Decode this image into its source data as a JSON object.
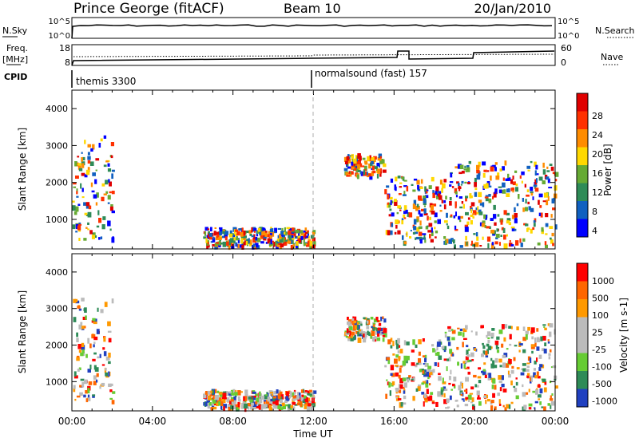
{
  "header": {
    "station": "Prince George (fitACF)",
    "beam": "Beam 10",
    "date": "20/Jan/2010"
  },
  "top_panel": {
    "nsky_label": "N.Sky",
    "nsky_ticks": [
      "10^5",
      "10^0"
    ],
    "nsearch_label": "N.Search",
    "freq_label": "Freq.",
    "freq_unit": "[MHz]",
    "freq_ticks": [
      "18",
      "8"
    ],
    "nave_label": "Nave",
    "nave_ticks": [
      "60",
      "0"
    ],
    "cpid_label": "CPID",
    "cpid_segments": [
      "themis 3300",
      "normalsound (fast) 157"
    ]
  },
  "chart_data": [
    {
      "type": "heatmap",
      "name": "power",
      "ylabel": "Slant Range [km]",
      "xlabel": "",
      "y_ticks": [
        "1000",
        "2000",
        "3000",
        "4000"
      ],
      "ylim": [
        200,
        4500
      ],
      "colorbar_label": "Power [dB]",
      "colorbar_ticks": [
        "28",
        "24",
        "20",
        "16",
        "12",
        "8",
        "4"
      ],
      "colors": [
        "#0000ff",
        "#1060c0",
        "#2e8b57",
        "#66aa33",
        "#ffd800",
        "#ff8c00",
        "#ff3000",
        "#e00000"
      ],
      "echo_regions_hours_km": [
        [
          0.0,
          2.0,
          500,
          3300
        ],
        [
          6.5,
          12.0,
          300,
          800
        ],
        [
          13.5,
          15.5,
          2200,
          2800
        ],
        [
          15.5,
          18.5,
          400,
          2200
        ],
        [
          18.5,
          24.0,
          300,
          2600
        ]
      ]
    },
    {
      "type": "heatmap",
      "name": "velocity",
      "ylabel": "Slant Range [km]",
      "xlabel": "Time UT",
      "y_ticks": [
        "1000",
        "2000",
        "3000",
        "4000"
      ],
      "ylim": [
        200,
        4500
      ],
      "colorbar_label": "Velocity [m s-1]",
      "colorbar_ticks": [
        "1000",
        "500",
        "100",
        "25",
        "-25",
        "-100",
        "-500",
        "-1000"
      ],
      "colors": [
        "#2040c0",
        "#2e8b57",
        "#66cc33",
        "#bbbbbb",
        "#bbbbbb",
        "#ff9900",
        "#ff6600",
        "#ff0000"
      ],
      "x_ticks": [
        "00:00",
        "04:00",
        "08:00",
        "12:00",
        "16:00",
        "20:00",
        "00:00"
      ]
    }
  ]
}
